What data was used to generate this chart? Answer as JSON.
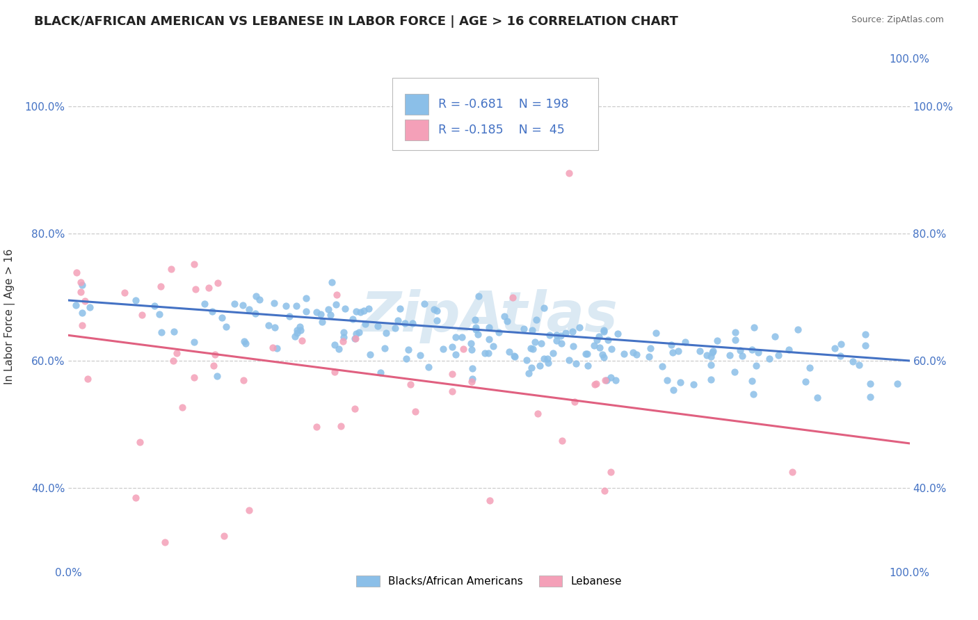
{
  "title": "BLACK/AFRICAN AMERICAN VS LEBANESE IN LABOR FORCE | AGE > 16 CORRELATION CHART",
  "source_text": "Source: ZipAtlas.com",
  "ylabel": "In Labor Force | Age > 16",
  "watermark": "ZipAtlas",
  "xlim": [
    0.0,
    1.0
  ],
  "ylim": [
    0.28,
    1.06
  ],
  "yticks": [
    0.4,
    0.6,
    0.8,
    1.0
  ],
  "ytick_labels": [
    "40.0%",
    "60.0%",
    "80.0%",
    "100.0%"
  ],
  "xticks": [
    0.0,
    1.0
  ],
  "xtick_labels": [
    "0.0%",
    "100.0%"
  ],
  "blue_scatter_color": "#8BBFE8",
  "pink_scatter_color": "#F4A0B8",
  "blue_line_color": "#4472C4",
  "pink_line_color": "#E06080",
  "title_color": "#222222",
  "source_color": "#666666",
  "legend_text_color": "#4472C4",
  "R_blue": -0.681,
  "N_blue": 198,
  "R_pink": -0.185,
  "N_pink": 45,
  "blue_seed": 42,
  "pink_seed": 7,
  "blue_intercept": 0.695,
  "blue_slope": -0.12,
  "pink_intercept": 0.68,
  "pink_slope": -0.27
}
